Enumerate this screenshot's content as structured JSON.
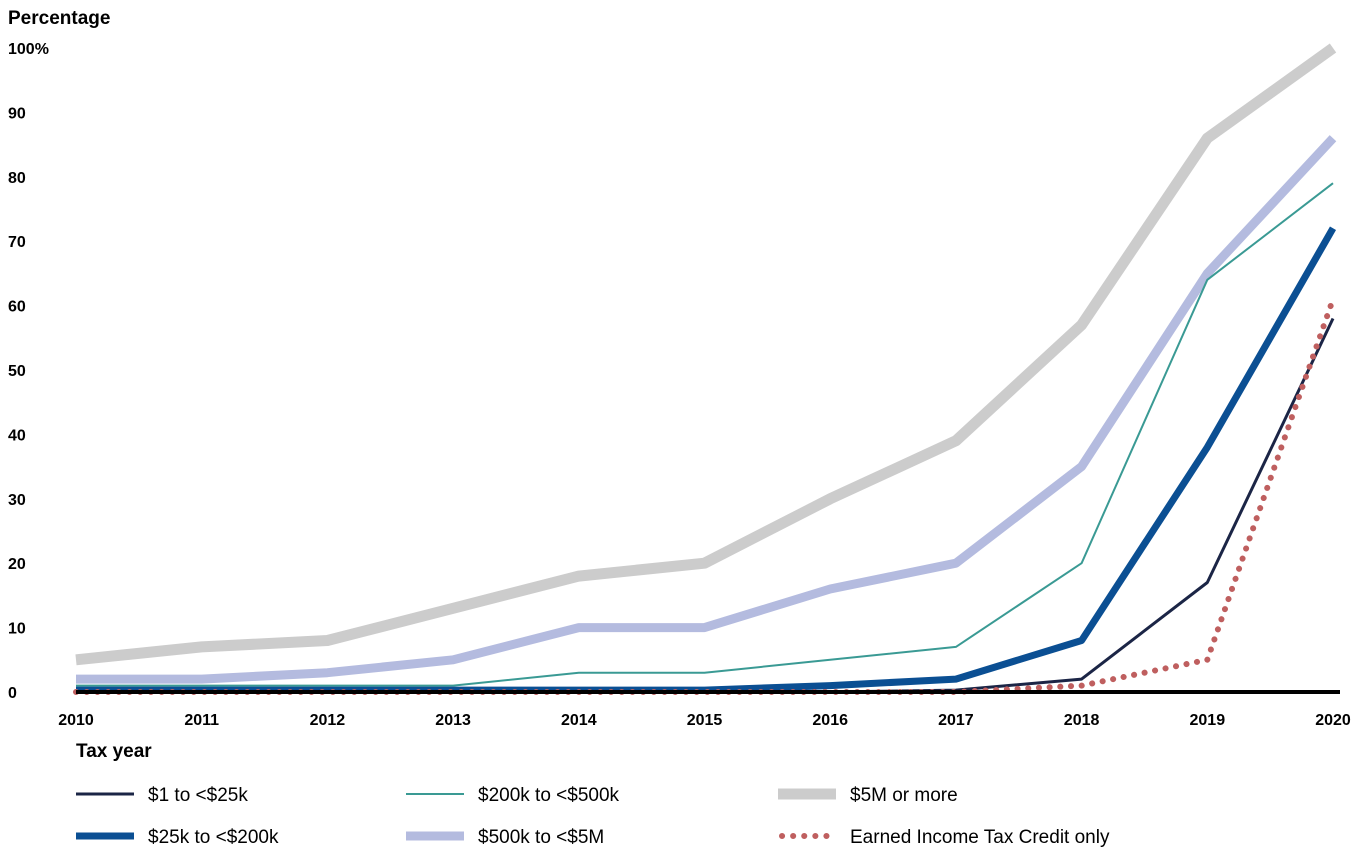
{
  "chart_data": {
    "type": "line",
    "ylabel": "Percentage",
    "xlabel": "Tax year",
    "x": [
      2010,
      2011,
      2012,
      2013,
      2014,
      2015,
      2016,
      2017,
      2018,
      2019,
      2020
    ],
    "x_tick_labels": [
      "2010",
      "2011",
      "2012",
      "2013",
      "2014",
      "2015",
      "2016",
      "2017",
      "2018",
      "2019",
      "2020"
    ],
    "ylim": [
      0,
      100
    ],
    "y_tick_labels": [
      "0",
      "10",
      "20",
      "30",
      "40",
      "50",
      "60",
      "70",
      "80",
      "90",
      "100%"
    ],
    "y_ticks": [
      0,
      10,
      20,
      30,
      40,
      50,
      60,
      70,
      80,
      90,
      100
    ],
    "grid": false,
    "legend_position": "bottom",
    "series": [
      {
        "name": "$5M or more",
        "color": "#cccccc",
        "style": "solid-thick",
        "values": [
          5,
          7,
          8,
          13,
          18,
          20,
          30,
          39,
          57,
          86,
          100
        ]
      },
      {
        "name": "$500k to <$5M",
        "color": "#b4bbdf",
        "style": "solid-medium",
        "values": [
          2,
          2,
          3,
          5,
          10,
          10,
          16,
          20,
          35,
          65,
          86
        ]
      },
      {
        "name": "$200k to <$500k",
        "color": "#3a9a94",
        "style": "solid-thin",
        "values": [
          1,
          1,
          1,
          1,
          3,
          3,
          5,
          7,
          20,
          64,
          79
        ]
      },
      {
        "name": "$25k to <$200k",
        "color": "#0b4f93",
        "style": "solid-bold",
        "values": [
          0.3,
          0.3,
          0.3,
          0.3,
          0.3,
          0.3,
          1,
          2,
          8,
          38,
          72
        ]
      },
      {
        "name": "$1 to <$25k",
        "color": "#1b2546",
        "style": "solid-thin-dark",
        "values": [
          0,
          0,
          0,
          0,
          0,
          0,
          0,
          0.3,
          2,
          17,
          58
        ]
      },
      {
        "name": "Earned Income Tax Credit only",
        "color": "#bf5f5f",
        "style": "dotted",
        "values": [
          0,
          0,
          0,
          0,
          0,
          0,
          0,
          0,
          1,
          5,
          61
        ]
      }
    ]
  }
}
